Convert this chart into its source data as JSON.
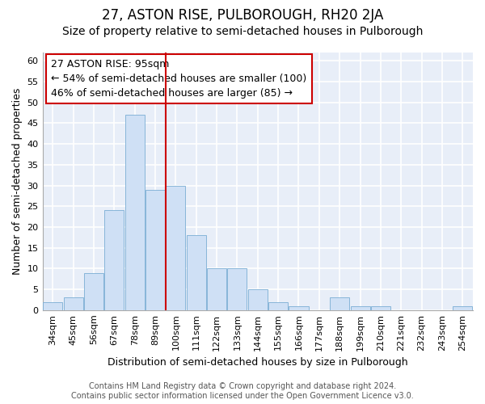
{
  "title": "27, ASTON RISE, PULBOROUGH, RH20 2JA",
  "subtitle": "Size of property relative to semi-detached houses in Pulborough",
  "xlabel": "Distribution of semi-detached houses by size in Pulborough",
  "ylabel": "Number of semi-detached properties",
  "categories": [
    "34sqm",
    "45sqm",
    "56sqm",
    "67sqm",
    "78sqm",
    "89sqm",
    "100sqm",
    "111sqm",
    "122sqm",
    "133sqm",
    "144sqm",
    "155sqm",
    "166sqm",
    "177sqm",
    "188sqm",
    "199sqm",
    "210sqm",
    "221sqm",
    "232sqm",
    "243sqm",
    "254sqm"
  ],
  "values": [
    2,
    3,
    9,
    24,
    47,
    29,
    30,
    18,
    10,
    10,
    5,
    2,
    1,
    0,
    3,
    1,
    1,
    0,
    0,
    0,
    1
  ],
  "bar_color": "#cfe0f5",
  "bar_edge_color": "#7aadd4",
  "vline_x": 5.5,
  "vline_color": "#cc0000",
  "annotation_text": "27 ASTON RISE: 95sqm\n← 54% of semi-detached houses are smaller (100)\n46% of semi-detached houses are larger (85) →",
  "annotation_box_color": "#ffffff",
  "annotation_box_edge_color": "#cc0000",
  "footer_line1": "Contains HM Land Registry data © Crown copyright and database right 2024.",
  "footer_line2": "Contains public sector information licensed under the Open Government Licence v3.0.",
  "ylim": [
    0,
    62
  ],
  "yticks": [
    0,
    5,
    10,
    15,
    20,
    25,
    30,
    35,
    40,
    45,
    50,
    55,
    60
  ],
  "background_color": "#e8eef8",
  "grid_color": "#ffffff",
  "fig_background": "#ffffff",
  "title_fontsize": 12,
  "subtitle_fontsize": 10,
  "axis_label_fontsize": 9,
  "tick_fontsize": 8,
  "annotation_fontsize": 9,
  "footer_fontsize": 7
}
